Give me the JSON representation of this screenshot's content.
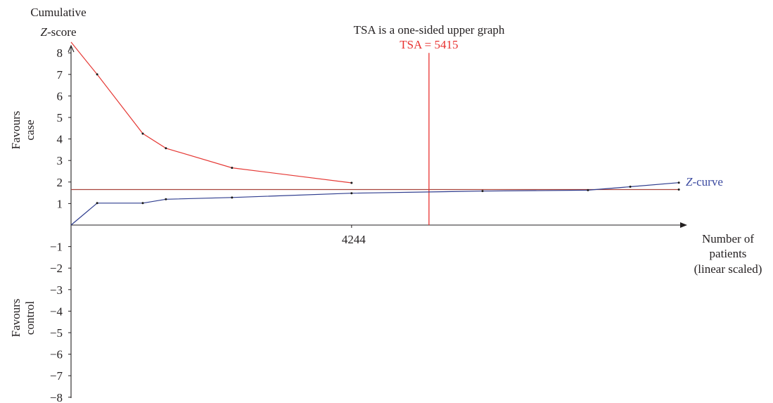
{
  "chart_data": {
    "type": "line",
    "title": "TSA is a one-sided upper graph",
    "ylabel": {
      "line1": "Cumulative",
      "var": "Z",
      "rest": "-score"
    },
    "xlabel": [
      "Number of",
      "patients",
      "(linear scaled)"
    ],
    "xlim": [
      0,
      9300
    ],
    "ylim": [
      -8,
      8
    ],
    "grid": false,
    "y_ticks": [
      {
        "value": 8,
        "label": "8"
      },
      {
        "value": 7,
        "label": "7"
      },
      {
        "value": 6,
        "label": "6"
      },
      {
        "value": 5,
        "label": "5"
      },
      {
        "value": 4,
        "label": "4"
      },
      {
        "value": 3,
        "label": "3"
      },
      {
        "value": 2,
        "label": "2"
      },
      {
        "value": 1,
        "label": "1"
      },
      {
        "value": -1,
        "label": "−1"
      },
      {
        "value": -2,
        "label": "−2"
      },
      {
        "value": -3,
        "label": "−3"
      },
      {
        "value": -4,
        "label": "−4"
      },
      {
        "value": -5,
        "label": "−5"
      },
      {
        "value": -6,
        "label": "−6"
      },
      {
        "value": -7,
        "label": "−7"
      },
      {
        "value": -8,
        "label": "−8"
      }
    ],
    "x_ticks": [
      {
        "value": 4244,
        "label": "4244"
      }
    ],
    "regions": [
      {
        "label": [
          "Favours",
          "case"
        ]
      },
      {
        "label": [
          "Favours",
          "control"
        ]
      }
    ],
    "annotation": {
      "label": "TSA = 5415",
      "x": 5415,
      "y_from": 0,
      "y_to": 8,
      "color": "#e8312f"
    },
    "reference_lines": [
      {
        "y": 1.65,
        "x_from": 0,
        "x_to": 9195,
        "color": "#a8433c"
      }
    ],
    "series": [
      {
        "color": "#e53935",
        "points": [
          [
            0,
            8.5
          ],
          [
            395,
            7.0
          ],
          [
            1085,
            4.25
          ],
          [
            1435,
            3.57
          ],
          [
            2435,
            2.66
          ],
          [
            4244,
            1.96
          ]
        ]
      },
      {
        "label": {
          "var": "Z",
          "rest": "-curve"
        },
        "color": "#2f3d8f",
        "label_color": "#3b4aa0",
        "points": [
          [
            0,
            0
          ],
          [
            395,
            1.02
          ],
          [
            1085,
            1.02
          ],
          [
            1435,
            1.2
          ],
          [
            2435,
            1.28
          ],
          [
            4244,
            1.48
          ],
          [
            6225,
            1.58
          ],
          [
            7820,
            1.62
          ],
          [
            8460,
            1.78
          ],
          [
            9195,
            1.97
          ]
        ]
      }
    ],
    "marker_color": "#1a1a1a"
  }
}
